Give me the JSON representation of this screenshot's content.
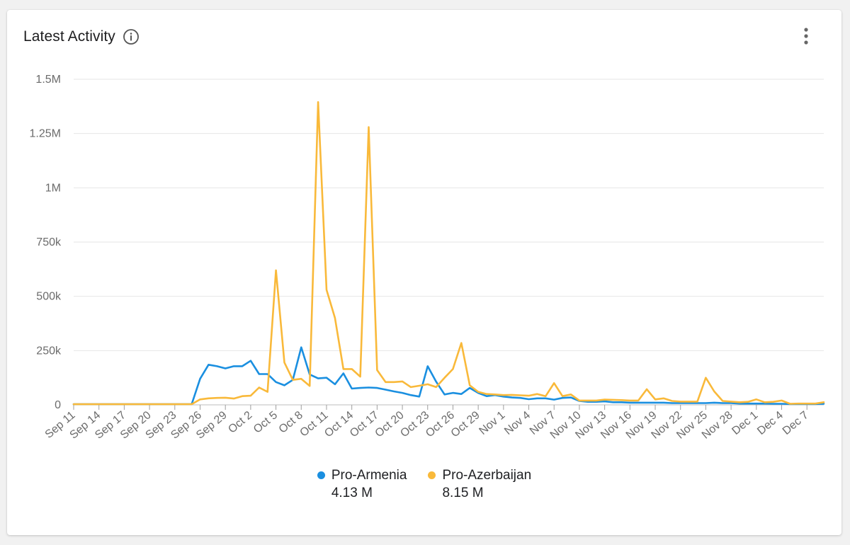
{
  "header": {
    "title": "Latest Activity",
    "info_icon": "info-icon",
    "menu_icon": "more-vert-icon"
  },
  "legend": [
    {
      "name": "Pro-Armenia",
      "total": "4.13 M",
      "color": "#1a8fe0"
    },
    {
      "name": "Pro-Azerbaijan",
      "total": "8.15 M",
      "color": "#f9b93a"
    }
  ],
  "chart_data": {
    "type": "line",
    "title": "Latest Activity",
    "xlabel": "",
    "ylabel": "",
    "ylim": [
      0,
      1500000
    ],
    "grid": true,
    "legend_position": "bottom",
    "yticks": [
      {
        "value": 0,
        "label": "0"
      },
      {
        "value": 250000,
        "label": "250k"
      },
      {
        "value": 500000,
        "label": "500k"
      },
      {
        "value": 750000,
        "label": "750k"
      },
      {
        "value": 1000000,
        "label": "1M"
      },
      {
        "value": 1250000,
        "label": "1.25M"
      },
      {
        "value": 1500000,
        "label": "1.5M"
      }
    ],
    "x_tick_labels": [
      "Sep 11",
      "Sep 14",
      "Sep 17",
      "Sep 20",
      "Sep 23",
      "Sep 26",
      "Sep 29",
      "Oct 2",
      "Oct 5",
      "Oct 8",
      "Oct 11",
      "Oct 14",
      "Oct 17",
      "Oct 20",
      "Oct 23",
      "Oct 26",
      "Oct 29",
      "Nov 1",
      "Nov 4",
      "Nov 7",
      "Nov 10",
      "Nov 13",
      "Nov 16",
      "Nov 19",
      "Nov 22",
      "Nov 25",
      "Nov 28",
      "Dec 1",
      "Dec 4",
      "Dec 7"
    ],
    "x": [
      "Sep 11",
      "Sep 12",
      "Sep 13",
      "Sep 14",
      "Sep 15",
      "Sep 16",
      "Sep 17",
      "Sep 18",
      "Sep 19",
      "Sep 20",
      "Sep 21",
      "Sep 22",
      "Sep 23",
      "Sep 24",
      "Sep 25",
      "Sep 26",
      "Sep 27",
      "Sep 28",
      "Sep 29",
      "Sep 30",
      "Oct 1",
      "Oct 2",
      "Oct 3",
      "Oct 4",
      "Oct 5",
      "Oct 6",
      "Oct 7",
      "Oct 8",
      "Oct 9",
      "Oct 10",
      "Oct 11",
      "Oct 12",
      "Oct 13",
      "Oct 14",
      "Oct 15",
      "Oct 16",
      "Oct 17",
      "Oct 18",
      "Oct 19",
      "Oct 20",
      "Oct 21",
      "Oct 22",
      "Oct 23",
      "Oct 24",
      "Oct 25",
      "Oct 26",
      "Oct 27",
      "Oct 28",
      "Oct 29",
      "Oct 30",
      "Oct 31",
      "Nov 1",
      "Nov 2",
      "Nov 3",
      "Nov 4",
      "Nov 5",
      "Nov 6",
      "Nov 7",
      "Nov 8",
      "Nov 9",
      "Nov 10",
      "Nov 11",
      "Nov 12",
      "Nov 13",
      "Nov 14",
      "Nov 15",
      "Nov 16",
      "Nov 17",
      "Nov 18",
      "Nov 19",
      "Nov 20",
      "Nov 21",
      "Nov 22",
      "Nov 23",
      "Nov 24",
      "Nov 25",
      "Nov 26",
      "Nov 27",
      "Nov 28",
      "Nov 29",
      "Nov 30",
      "Dec 1",
      "Dec 2",
      "Dec 3",
      "Dec 4",
      "Dec 5",
      "Dec 6",
      "Dec 7",
      "Dec 8",
      "Dec 9"
    ],
    "series": [
      {
        "name": "Pro-Armenia",
        "color": "#1a8fe0",
        "values": [
          3000,
          3000,
          3000,
          3000,
          3000,
          3000,
          3000,
          3000,
          3000,
          3000,
          3000,
          3000,
          3000,
          3000,
          3000,
          120000,
          185000,
          178000,
          168000,
          178000,
          178000,
          203000,
          142000,
          142000,
          105000,
          90000,
          115000,
          265000,
          140000,
          122000,
          125000,
          95000,
          145000,
          75000,
          78000,
          80000,
          78000,
          70000,
          62000,
          55000,
          45000,
          38000,
          178000,
          107000,
          48000,
          55000,
          50000,
          78000,
          55000,
          40000,
          45000,
          38000,
          34000,
          32000,
          26000,
          30000,
          30000,
          24000,
          32000,
          34000,
          18000,
          14000,
          14000,
          16000,
          12000,
          12000,
          10000,
          10000,
          10000,
          10000,
          10000,
          8000,
          8000,
          8000,
          8000,
          8000,
          10000,
          8000,
          8000,
          6000,
          6000,
          6000,
          6000,
          5000,
          5000,
          4000,
          4000,
          4000,
          4000,
          5000
        ]
      },
      {
        "name": "Pro-Azerbaijan",
        "color": "#f9b93a",
        "values": [
          3000,
          3000,
          3000,
          3000,
          3000,
          3000,
          3000,
          3000,
          3000,
          3000,
          3000,
          3000,
          3000,
          3000,
          3000,
          25000,
          30000,
          32000,
          33000,
          29000,
          40000,
          42000,
          80000,
          60000,
          620000,
          195000,
          115000,
          120000,
          87000,
          1395000,
          530000,
          400000,
          165000,
          165000,
          130000,
          1280000,
          160000,
          105000,
          105000,
          108000,
          82000,
          88000,
          95000,
          82000,
          125000,
          165000,
          285000,
          90000,
          60000,
          50000,
          48000,
          45000,
          46000,
          44000,
          42000,
          50000,
          40000,
          100000,
          40000,
          48000,
          20000,
          20000,
          20000,
          24000,
          23000,
          22000,
          20000,
          20000,
          72000,
          25000,
          30000,
          18000,
          15000,
          15000,
          15000,
          125000,
          62000,
          18000,
          15000,
          12000,
          14000,
          25000,
          12000,
          14000,
          20000,
          5000,
          6000,
          6000,
          6000,
          12000
        ]
      }
    ]
  }
}
